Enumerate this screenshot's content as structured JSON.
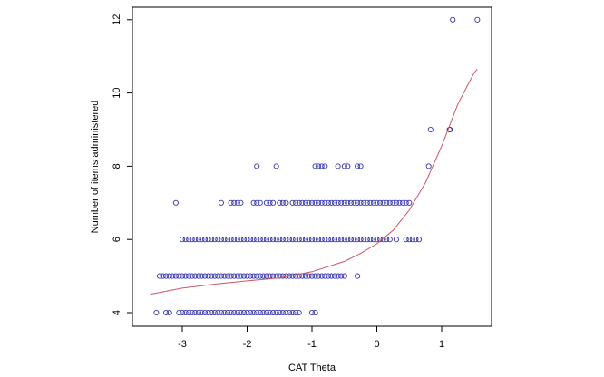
{
  "chart_data": {
    "type": "scatter",
    "title": "",
    "xlabel": "CAT Theta",
    "ylabel": "Number of items administered",
    "xlim": [
      -3.6,
      1.65
    ],
    "ylim": [
      3.85,
      12.2
    ],
    "x_ticks": [
      "-3",
      "-2",
      "-1",
      "0",
      "1"
    ],
    "y_ticks": [
      "4",
      "6",
      "8",
      "10",
      "12"
    ],
    "grid": false,
    "legend": "none",
    "marker_color": "#3333aa",
    "line_color": "#cc5566",
    "series": [
      {
        "marker": "open-circle",
        "points": [
          {
            "y": 4,
            "x": [
              -3.4,
              -3.25,
              -3.2,
              -3.05,
              -3.0,
              -2.95,
              -2.9,
              -2.85,
              -2.8,
              -2.75,
              -2.7,
              -2.65,
              -2.6,
              -2.55,
              -2.5,
              -2.45,
              -2.4,
              -2.35,
              -2.3,
              -2.25,
              -2.2,
              -2.15,
              -2.1,
              -2.05,
              -2.0,
              -1.95,
              -1.9,
              -1.85,
              -1.8,
              -1.75,
              -1.7,
              -1.65,
              -1.6,
              -1.55,
              -1.5,
              -1.45,
              -1.4,
              -1.35,
              -1.3,
              -1.25,
              -1.2,
              -1.0,
              -0.95
            ]
          },
          {
            "y": 5,
            "x": [
              -3.35,
              -3.3,
              -3.25,
              -3.2,
              -3.15,
              -3.1,
              -3.05,
              -3.0,
              -2.95,
              -2.9,
              -2.85,
              -2.8,
              -2.75,
              -2.7,
              -2.65,
              -2.6,
              -2.55,
              -2.5,
              -2.45,
              -2.4,
              -2.35,
              -2.3,
              -2.25,
              -2.2,
              -2.15,
              -2.1,
              -2.05,
              -2.0,
              -1.95,
              -1.9,
              -1.85,
              -1.8,
              -1.75,
              -1.7,
              -1.65,
              -1.6,
              -1.55,
              -1.5,
              -1.45,
              -1.4,
              -1.35,
              -1.3,
              -1.25,
              -1.2,
              -1.15,
              -1.1,
              -1.05,
              -1.0,
              -0.95,
              -0.9,
              -0.85,
              -0.8,
              -0.75,
              -0.7,
              -0.65,
              -0.6,
              -0.55,
              -0.5,
              -0.3
            ]
          },
          {
            "y": 6,
            "x": [
              -3.0,
              -2.95,
              -2.9,
              -2.85,
              -2.8,
              -2.75,
              -2.7,
              -2.65,
              -2.6,
              -2.55,
              -2.5,
              -2.45,
              -2.4,
              -2.35,
              -2.3,
              -2.25,
              -2.2,
              -2.15,
              -2.1,
              -2.05,
              -2.0,
              -1.95,
              -1.9,
              -1.85,
              -1.8,
              -1.75,
              -1.7,
              -1.65,
              -1.6,
              -1.55,
              -1.5,
              -1.45,
              -1.4,
              -1.35,
              -1.3,
              -1.25,
              -1.2,
              -1.15,
              -1.1,
              -1.05,
              -1.0,
              -0.95,
              -0.9,
              -0.85,
              -0.8,
              -0.75,
              -0.7,
              -0.65,
              -0.6,
              -0.55,
              -0.5,
              -0.45,
              -0.4,
              -0.35,
              -0.3,
              -0.25,
              -0.2,
              -0.15,
              -0.1,
              -0.05,
              0.0,
              0.05,
              0.1,
              0.15,
              0.2,
              0.3,
              0.45,
              0.5,
              0.55,
              0.6,
              0.65
            ]
          },
          {
            "y": 7,
            "x": [
              -3.1,
              -2.4,
              -2.25,
              -2.2,
              -2.15,
              -2.1,
              -1.9,
              -1.85,
              -1.8,
              -1.7,
              -1.65,
              -1.6,
              -1.5,
              -1.45,
              -1.4,
              -1.3,
              -1.25,
              -1.2,
              -1.15,
              -1.1,
              -1.05,
              -1.0,
              -0.95,
              -0.9,
              -0.85,
              -0.8,
              -0.75,
              -0.7,
              -0.65,
              -0.6,
              -0.55,
              -0.5,
              -0.45,
              -0.4,
              -0.35,
              -0.3,
              -0.25,
              -0.2,
              -0.15,
              -0.1,
              -0.05,
              0.0,
              0.05,
              0.1,
              0.15,
              0.2,
              0.25,
              0.3,
              0.35,
              0.4,
              0.45,
              0.5
            ]
          },
          {
            "y": 8,
            "x": [
              -1.85,
              -1.55,
              -0.95,
              -0.9,
              -0.85,
              -0.8,
              -0.6,
              -0.5,
              -0.45,
              -0.3,
              -0.25,
              0.8
            ]
          },
          {
            "y": 9,
            "x": [
              0.83,
              1.12,
              1.13
            ]
          },
          {
            "y": 12,
            "x": [
              1.17,
              1.55
            ]
          }
        ]
      }
    ],
    "fit_line": {
      "x": [
        -3.5,
        -3.0,
        -2.5,
        -2.0,
        -1.5,
        -1.0,
        -0.5,
        -0.25,
        0.0,
        0.25,
        0.5,
        0.75,
        1.0,
        1.25,
        1.5,
        1.55
      ],
      "y": [
        4.5,
        4.67,
        4.78,
        4.87,
        4.95,
        5.12,
        5.4,
        5.62,
        5.88,
        6.25,
        6.8,
        7.55,
        8.55,
        9.7,
        10.55,
        10.65
      ]
    }
  }
}
